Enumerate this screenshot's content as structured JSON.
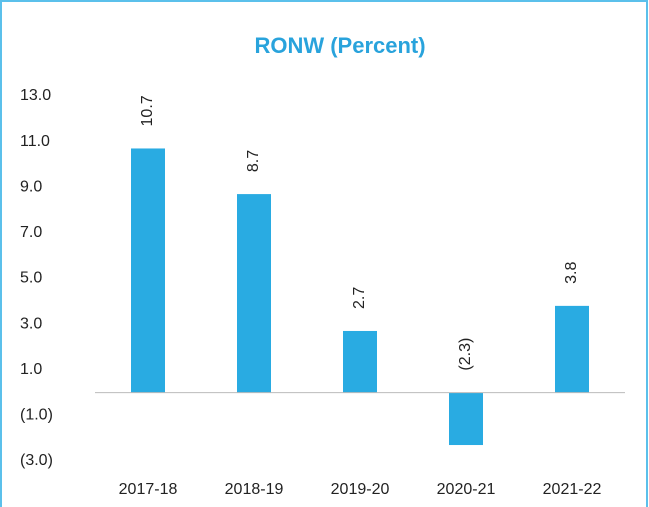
{
  "chart_data": {
    "type": "bar",
    "title": "RONW (Percent)",
    "categories": [
      "2017-18",
      "2018-19",
      "2019-20",
      "2020-21",
      "2021-22"
    ],
    "values": [
      10.7,
      8.7,
      2.7,
      -2.3,
      3.8
    ],
    "value_labels": [
      "10.7",
      "8.7",
      "2.7",
      "(2.3)",
      "3.8"
    ],
    "color": "#29abe2",
    "ylim": [
      -3,
      13
    ],
    "yticks": [
      {
        "value": 13,
        "label": "13.0"
      },
      {
        "value": 11,
        "label": "11.0"
      },
      {
        "value": 9,
        "label": "9.0"
      },
      {
        "value": 7,
        "label": "7.0"
      },
      {
        "value": 5,
        "label": "5.0"
      },
      {
        "value": 3,
        "label": "3.0"
      },
      {
        "value": 1,
        "label": "1.0"
      },
      {
        "value": -1,
        "label": "(1.0)"
      },
      {
        "value": -3,
        "label": "(3.0)"
      }
    ],
    "grid": false
  }
}
